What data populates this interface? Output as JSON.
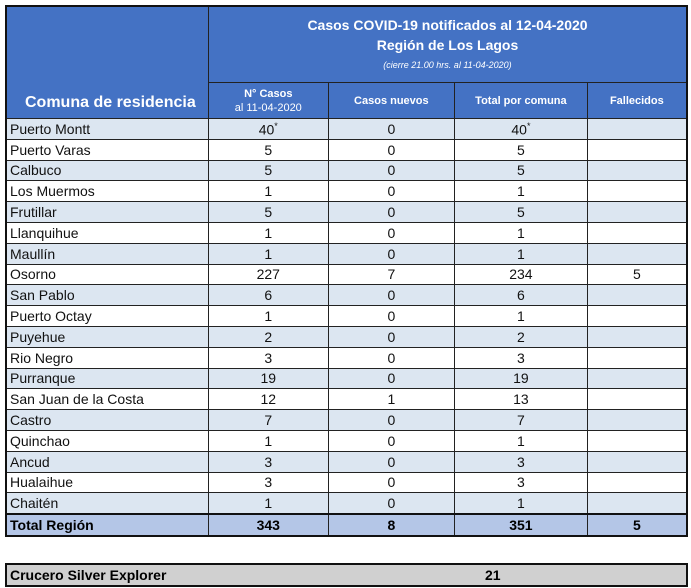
{
  "header": {
    "comuna_label": "Comuna de residencia",
    "title": "Casos COVID-19 notificados al 12-04-2020",
    "region": "Región de Los Lagos",
    "note": "(cierre 21.00 hrs. al 11-04-2020)",
    "columns": [
      {
        "line1": "N° Casos",
        "line2": "al 11-04-2020"
      },
      {
        "line1": "Casos nuevos"
      },
      {
        "line1": "Total por comuna"
      },
      {
        "line1": "Fallecidos"
      }
    ]
  },
  "rows": [
    {
      "comuna": "Puerto Montt",
      "casos": "40",
      "nuevos": "0",
      "total": "40",
      "fallecidos": "",
      "mark": "*"
    },
    {
      "comuna": "Puerto Varas",
      "casos": "5",
      "nuevos": "0",
      "total": "5",
      "fallecidos": ""
    },
    {
      "comuna": "Calbuco",
      "casos": "5",
      "nuevos": "0",
      "total": "5",
      "fallecidos": ""
    },
    {
      "comuna": "Los Muermos",
      "casos": "1",
      "nuevos": "0",
      "total": "1",
      "fallecidos": ""
    },
    {
      "comuna": "Frutillar",
      "casos": "5",
      "nuevos": "0",
      "total": "5",
      "fallecidos": ""
    },
    {
      "comuna": "Llanquihue",
      "casos": "1",
      "nuevos": "0",
      "total": "1",
      "fallecidos": ""
    },
    {
      "comuna": "Maullín",
      "casos": "1",
      "nuevos": "0",
      "total": "1",
      "fallecidos": ""
    },
    {
      "comuna": "Osorno",
      "casos": "227",
      "nuevos": "7",
      "total": "234",
      "fallecidos": "5"
    },
    {
      "comuna": "San Pablo",
      "casos": "6",
      "nuevos": "0",
      "total": "6",
      "fallecidos": ""
    },
    {
      "comuna": "Puerto Octay",
      "casos": "1",
      "nuevos": "0",
      "total": "1",
      "fallecidos": ""
    },
    {
      "comuna": "Puyehue",
      "casos": "2",
      "nuevos": "0",
      "total": "2",
      "fallecidos": ""
    },
    {
      "comuna": "Rio Negro",
      "casos": "3",
      "nuevos": "0",
      "total": "3",
      "fallecidos": ""
    },
    {
      "comuna": "Purranque",
      "casos": "19",
      "nuevos": "0",
      "total": "19",
      "fallecidos": ""
    },
    {
      "comuna": "San Juan de la Costa",
      "casos": "12",
      "nuevos": "1",
      "total": "13",
      "fallecidos": ""
    },
    {
      "comuna": "Castro",
      "casos": "7",
      "nuevos": "0",
      "total": "7",
      "fallecidos": ""
    },
    {
      "comuna": "Quinchao",
      "casos": "1",
      "nuevos": "0",
      "total": "1",
      "fallecidos": ""
    },
    {
      "comuna": "Ancud",
      "casos": "3",
      "nuevos": "0",
      "total": "3",
      "fallecidos": ""
    },
    {
      "comuna": "Hualaihue",
      "casos": "3",
      "nuevos": "0",
      "total": "3",
      "fallecidos": ""
    },
    {
      "comuna": "Chaitén",
      "casos": "1",
      "nuevos": "0",
      "total": "1",
      "fallecidos": ""
    }
  ],
  "total": {
    "label": "Total Región",
    "casos": "343",
    "nuevos": "8",
    "total": "351",
    "fallecidos": "5"
  },
  "cruise": {
    "label": "Crucero Silver Explorer",
    "value": "21"
  }
}
